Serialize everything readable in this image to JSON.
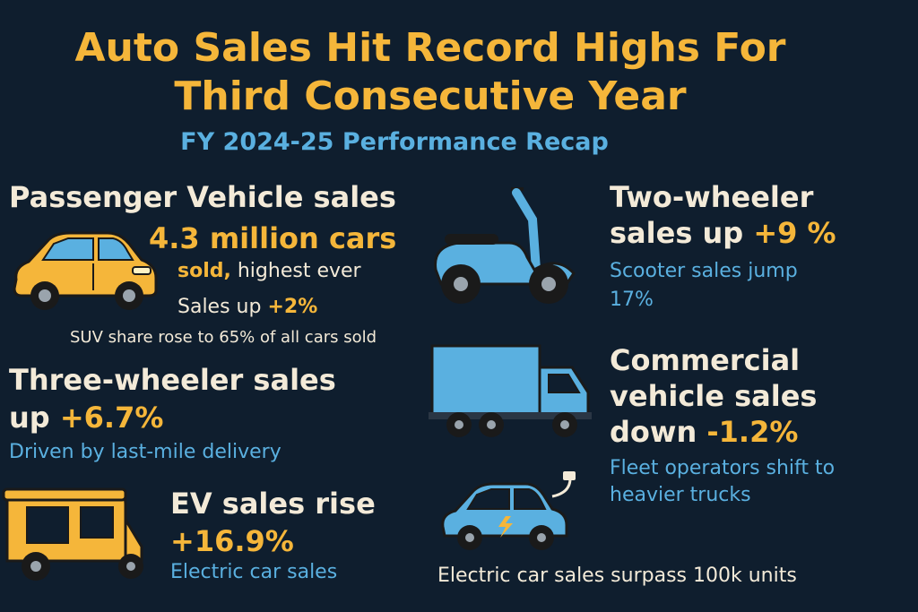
{
  "header": {
    "title_line1": "Auto Sales Hit Record Highs For",
    "title_line2": "Third Consecutive Year",
    "subtitle": "FY 2024-25 Performance Recap"
  },
  "passenger": {
    "heading": "Passenger Vehicle sales",
    "big_value": "4.3 million cars",
    "sold_word": "sold,",
    "highest_text": "highest ever",
    "sales_up_label": "Sales up",
    "sales_up_value": "+2%",
    "suv_note": "SUV share rose to 65% of all cars sold"
  },
  "three_wheeler": {
    "heading_line1": "Three-wheeler sales",
    "heading_word": "up",
    "change": "+6.7%",
    "note": "Driven by last-mile delivery"
  },
  "ev": {
    "heading": "EV sales rise",
    "change": "+16.9%",
    "note": "Electric car sales",
    "footer_note": "Electric car sales surpass 100k units"
  },
  "two_wheeler": {
    "heading_line1": "Two-wheeler",
    "heading_word": "sales up",
    "change": "+9 %",
    "note_line1": "Scooter sales jump",
    "note_line2": "17%"
  },
  "commercial": {
    "heading_line1": "Commercial",
    "heading_line2": "vehicle sales",
    "heading_word": "down",
    "change": "-1.2%",
    "note_line1": "Fleet operators shift to",
    "note_line2": "heavier trucks"
  },
  "colors": {
    "background": "#0f1e2e",
    "accent_orange": "#f5b63a",
    "accent_blue": "#5ab0e0",
    "text_cream": "#f3ead8"
  }
}
